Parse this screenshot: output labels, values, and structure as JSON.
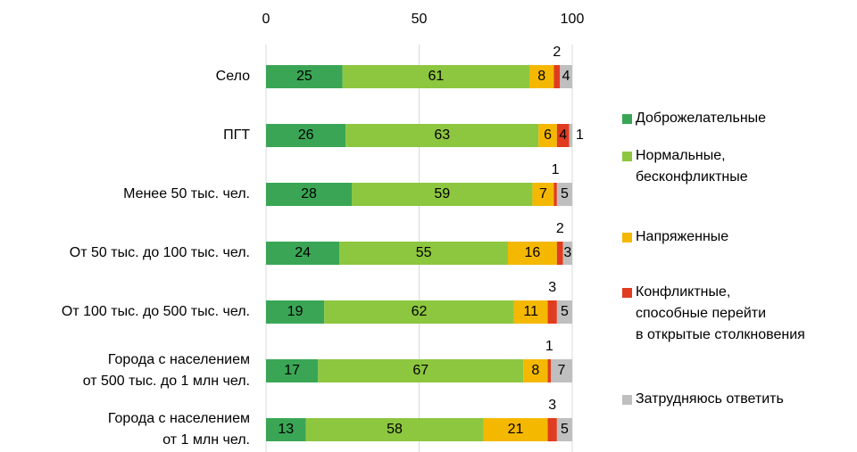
{
  "chart_data": {
    "type": "stacked_barh",
    "categories": [
      "Село",
      "ПГТ",
      "Менее 50 тыс. чел.",
      "От 50 тыс. до 100 тыс. чел.",
      "От 100 тыс. до 500 тыс. чел.",
      "Города с населением\nот 500 тыс. до 1 млн чел.",
      "Города с населением\nот 1 млн чел."
    ],
    "series": [
      {
        "name": "Доброжелательные",
        "color": "#3aa655",
        "values": [
          25,
          26,
          28,
          24,
          19,
          17,
          13
        ]
      },
      {
        "name": "Нормальные,\nбесконфликтные",
        "color": "#8dc63f",
        "values": [
          61,
          63,
          59,
          55,
          62,
          67,
          58
        ]
      },
      {
        "name": "Напряженные",
        "color": "#f5b800",
        "values": [
          8,
          6,
          7,
          16,
          11,
          8,
          21
        ]
      },
      {
        "name": "Конфликтные,\nспособные перейти\nв открытые столкновения",
        "color": "#e03c1f",
        "values": [
          2,
          4,
          1,
          2,
          3,
          1,
          3
        ]
      },
      {
        "name": "Затрудняюсь ответить",
        "color": "#bfbfbf",
        "values": [
          4,
          1,
          5,
          3,
          5,
          7,
          5
        ]
      }
    ],
    "xlim": [
      0,
      100
    ],
    "xticks": [
      0,
      50,
      100
    ],
    "grid": true,
    "legend": "right"
  }
}
